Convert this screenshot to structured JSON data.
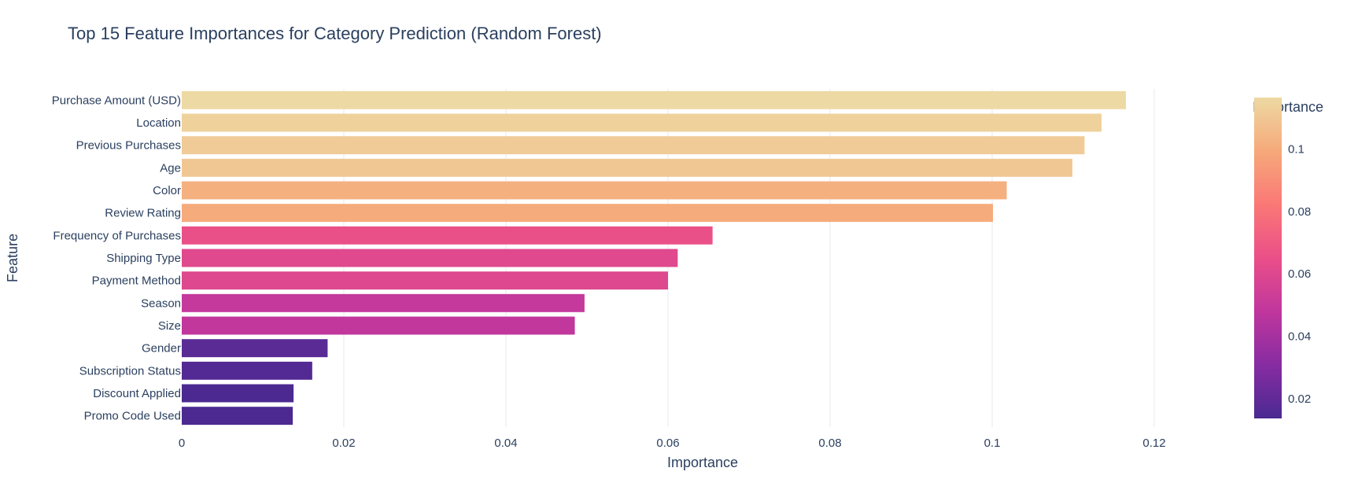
{
  "chart_data": {
    "type": "bar",
    "orientation": "horizontal",
    "title": "Top 15 Feature Importances for Category Prediction (Random Forest)",
    "xlabel": "Importance",
    "ylabel": "Feature",
    "xlim": [
      0,
      0.13
    ],
    "grid": true,
    "x_ticks": [
      {
        "value": 0,
        "label": "0"
      },
      {
        "value": 0.02,
        "label": "0.02"
      },
      {
        "value": 0.04,
        "label": "0.04"
      },
      {
        "value": 0.06,
        "label": "0.06"
      },
      {
        "value": 0.08,
        "label": "0.08"
      },
      {
        "value": 0.1,
        "label": "0.1"
      },
      {
        "value": 0.12,
        "label": "0.12"
      }
    ],
    "categories": [
      "Purchase Amount (USD)",
      "Location",
      "Previous Purchases",
      "Age",
      "Color",
      "Review Rating",
      "Frequency of Purchases",
      "Shipping Type",
      "Payment Method",
      "Season",
      "Size",
      "Gender",
      "Subscription Status",
      "Discount Applied",
      "Promo Code Used"
    ],
    "values": [
      0.1165,
      0.1135,
      0.1114,
      0.1099,
      0.1018,
      0.1001,
      0.0655,
      0.0612,
      0.06,
      0.0497,
      0.0485,
      0.018,
      0.0161,
      0.0138,
      0.0137
    ],
    "colorbar": {
      "title": "Importance",
      "colorscale": "Magenta-Sunset",
      "stops": [
        "#4b2991",
        "#872ca2",
        "#c0369d",
        "#ea4f88",
        "#fa7876",
        "#f6a97a",
        "#edd9a3"
      ],
      "cmin": 0.0137,
      "cmax": 0.1165,
      "ticks": [
        {
          "value": 0.02,
          "label": "0.02"
        },
        {
          "value": 0.04,
          "label": "0.04"
        },
        {
          "value": 0.06,
          "label": "0.06"
        },
        {
          "value": 0.08,
          "label": "0.08"
        },
        {
          "value": 0.1,
          "label": "0.1"
        }
      ]
    }
  }
}
